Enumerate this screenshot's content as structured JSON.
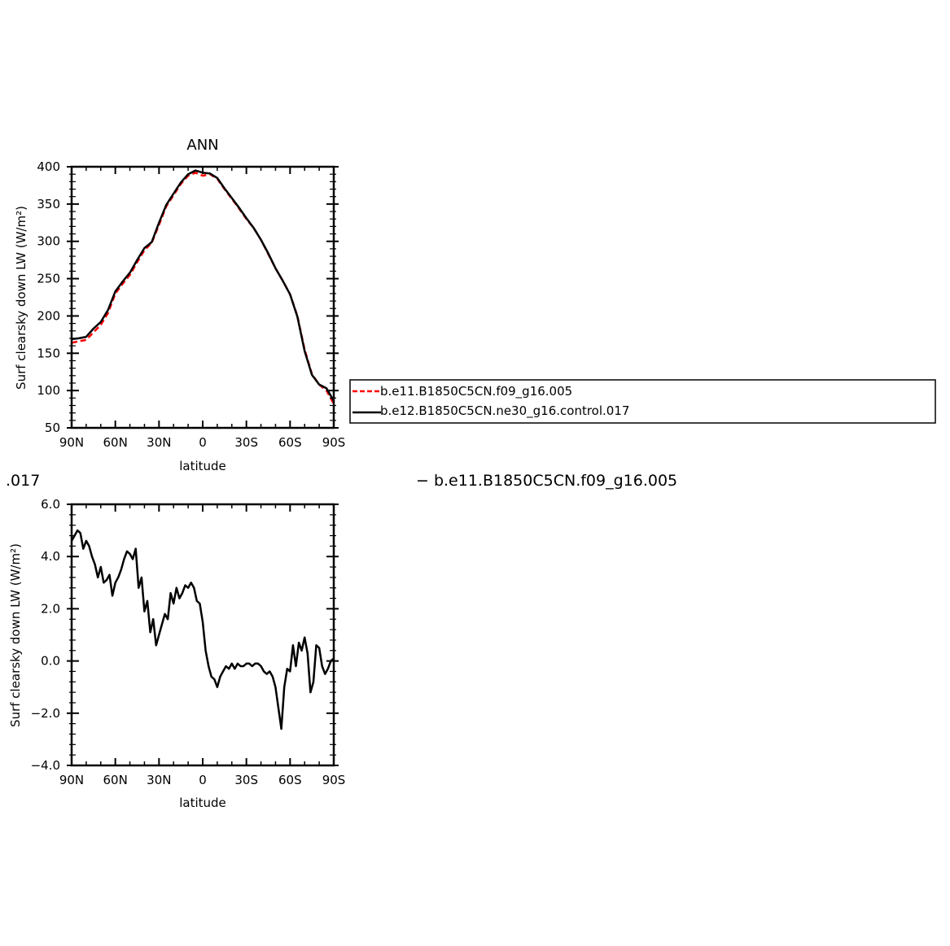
{
  "chart_data": [
    {
      "type": "line",
      "title": "ANN",
      "xlabel": "latitude",
      "ylabel": "Surf clearsky down LW (W/m²)",
      "xlim": [
        90,
        -90
      ],
      "ylim": [
        50,
        400
      ],
      "x_ticks": [
        90,
        60,
        30,
        0,
        -30,
        -60,
        -90
      ],
      "x_tick_labels": [
        "90N",
        "60N",
        "30N",
        "0",
        "30S",
        "60S",
        "90S"
      ],
      "y_ticks": [
        50,
        100,
        150,
        200,
        250,
        300,
        350,
        400
      ],
      "y_tick_labels": [
        "50",
        "100",
        "150",
        "200",
        "250",
        "300",
        "350",
        "400"
      ],
      "legend_position": "right, outside",
      "series": [
        {
          "name": "b.e11.B1850C5CN.f09_g16.005",
          "color": "#ff0000",
          "dash": "dashed",
          "x": [
            90,
            85,
            80,
            75,
            70,
            65,
            60,
            55,
            50,
            45,
            40,
            35,
            30,
            25,
            20,
            15,
            10,
            5,
            0,
            -5,
            -10,
            -15,
            -20,
            -25,
            -30,
            -35,
            -40,
            -45,
            -50,
            -55,
            -60,
            -65,
            -70,
            -75,
            -80,
            -85,
            -90
          ],
          "values": [
            164,
            166,
            168,
            178,
            188,
            204,
            230,
            243,
            255,
            272,
            288,
            298,
            322,
            347,
            362,
            377,
            388,
            392,
            388,
            390,
            384,
            370,
            357,
            344,
            330,
            318,
            302,
            283,
            264,
            247,
            229,
            200,
            155,
            122,
            108,
            100,
            82
          ]
        },
        {
          "name": "b.e12.B1850C5CN.ne30_g16.control.017",
          "color": "#000000",
          "dash": "solid",
          "x": [
            90,
            85,
            80,
            75,
            70,
            65,
            60,
            55,
            50,
            45,
            40,
            35,
            30,
            25,
            20,
            15,
            10,
            5,
            0,
            -5,
            -10,
            -15,
            -20,
            -25,
            -30,
            -35,
            -40,
            -45,
            -50,
            -55,
            -60,
            -65,
            -70,
            -75,
            -80,
            -85,
            -90
          ],
          "values": [
            169,
            170,
            172,
            183,
            192,
            208,
            233,
            246,
            258,
            275,
            291,
            299,
            325,
            349,
            364,
            379,
            390,
            395,
            392,
            391,
            385,
            371,
            358,
            345,
            331,
            318,
            302,
            284,
            264,
            247,
            229,
            199,
            153,
            121,
            108,
            103,
            86
          ]
        }
      ]
    },
    {
      "type": "line",
      "title": "",
      "xlabel": "latitude",
      "ylabel": "Surf clearsky down LW (W/m²)",
      "xlim": [
        90,
        -90
      ],
      "ylim": [
        -4,
        6
      ],
      "x_ticks": [
        90,
        60,
        30,
        0,
        -30,
        -60,
        -90
      ],
      "x_tick_labels": [
        "90N",
        "60N",
        "30N",
        "0",
        "30S",
        "60S",
        "90S"
      ],
      "y_ticks": [
        -4,
        -2,
        0,
        2,
        4,
        6
      ],
      "y_tick_labels": [
        "−4.0",
        "−2.0",
        "0.0",
        "2.0",
        "4.0",
        "6.0"
      ],
      "series": [
        {
          "color": "#000000",
          "dash": "solid",
          "x": [
            90,
            88,
            86,
            84,
            82,
            80,
            78,
            76,
            74,
            72,
            70,
            68,
            66,
            64,
            62,
            60,
            58,
            56,
            54,
            52,
            50,
            48,
            46,
            44,
            42,
            40,
            38,
            36,
            34,
            32,
            30,
            28,
            26,
            24,
            22,
            20,
            18,
            16,
            14,
            12,
            10,
            8,
            6,
            4,
            2,
            0,
            -2,
            -4,
            -6,
            -8,
            -10,
            -12,
            -14,
            -16,
            -18,
            -20,
            -22,
            -24,
            -26,
            -28,
            -30,
            -32,
            -34,
            -36,
            -38,
            -40,
            -42,
            -44,
            -46,
            -48,
            -50,
            -52,
            -54,
            -56,
            -58,
            -60,
            -62,
            -64,
            -66,
            -68,
            -70,
            -72,
            -74,
            -76,
            -78,
            -80,
            -82,
            -84,
            -86,
            -88,
            -90
          ],
          "values": [
            4.6,
            4.8,
            5.0,
            4.9,
            4.3,
            4.6,
            4.4,
            4.0,
            3.7,
            3.2,
            3.6,
            3.0,
            3.1,
            3.3,
            2.5,
            3.0,
            3.2,
            3.5,
            3.9,
            4.2,
            4.1,
            3.9,
            4.3,
            2.8,
            3.2,
            1.9,
            2.3,
            1.1,
            1.6,
            0.6,
            1.0,
            1.4,
            1.8,
            1.6,
            2.6,
            2.2,
            2.8,
            2.4,
            2.6,
            2.9,
            2.8,
            3.0,
            2.8,
            2.3,
            2.2,
            1.5,
            0.4,
            -0.2,
            -0.6,
            -0.7,
            -1.0,
            -0.6,
            -0.4,
            -0.2,
            -0.3,
            -0.1,
            -0.3,
            -0.1,
            -0.2,
            -0.2,
            -0.1,
            -0.1,
            -0.2,
            -0.1,
            -0.1,
            -0.2,
            -0.4,
            -0.5,
            -0.4,
            -0.6,
            -1.0,
            -1.8,
            -2.6,
            -1.0,
            -0.3,
            -0.4,
            0.6,
            -0.2,
            0.7,
            0.4,
            0.9,
            0.3,
            -1.2,
            -0.8,
            0.6,
            0.5,
            -0.2,
            -0.5,
            -0.3,
            0.0,
            0.1
          ],
          "note_units": "W/m²"
        }
      ]
    }
  ],
  "fragments": {
    "left_label": ".017",
    "right_label": "− b.e11.B1850C5CN.f09_g16.005"
  }
}
